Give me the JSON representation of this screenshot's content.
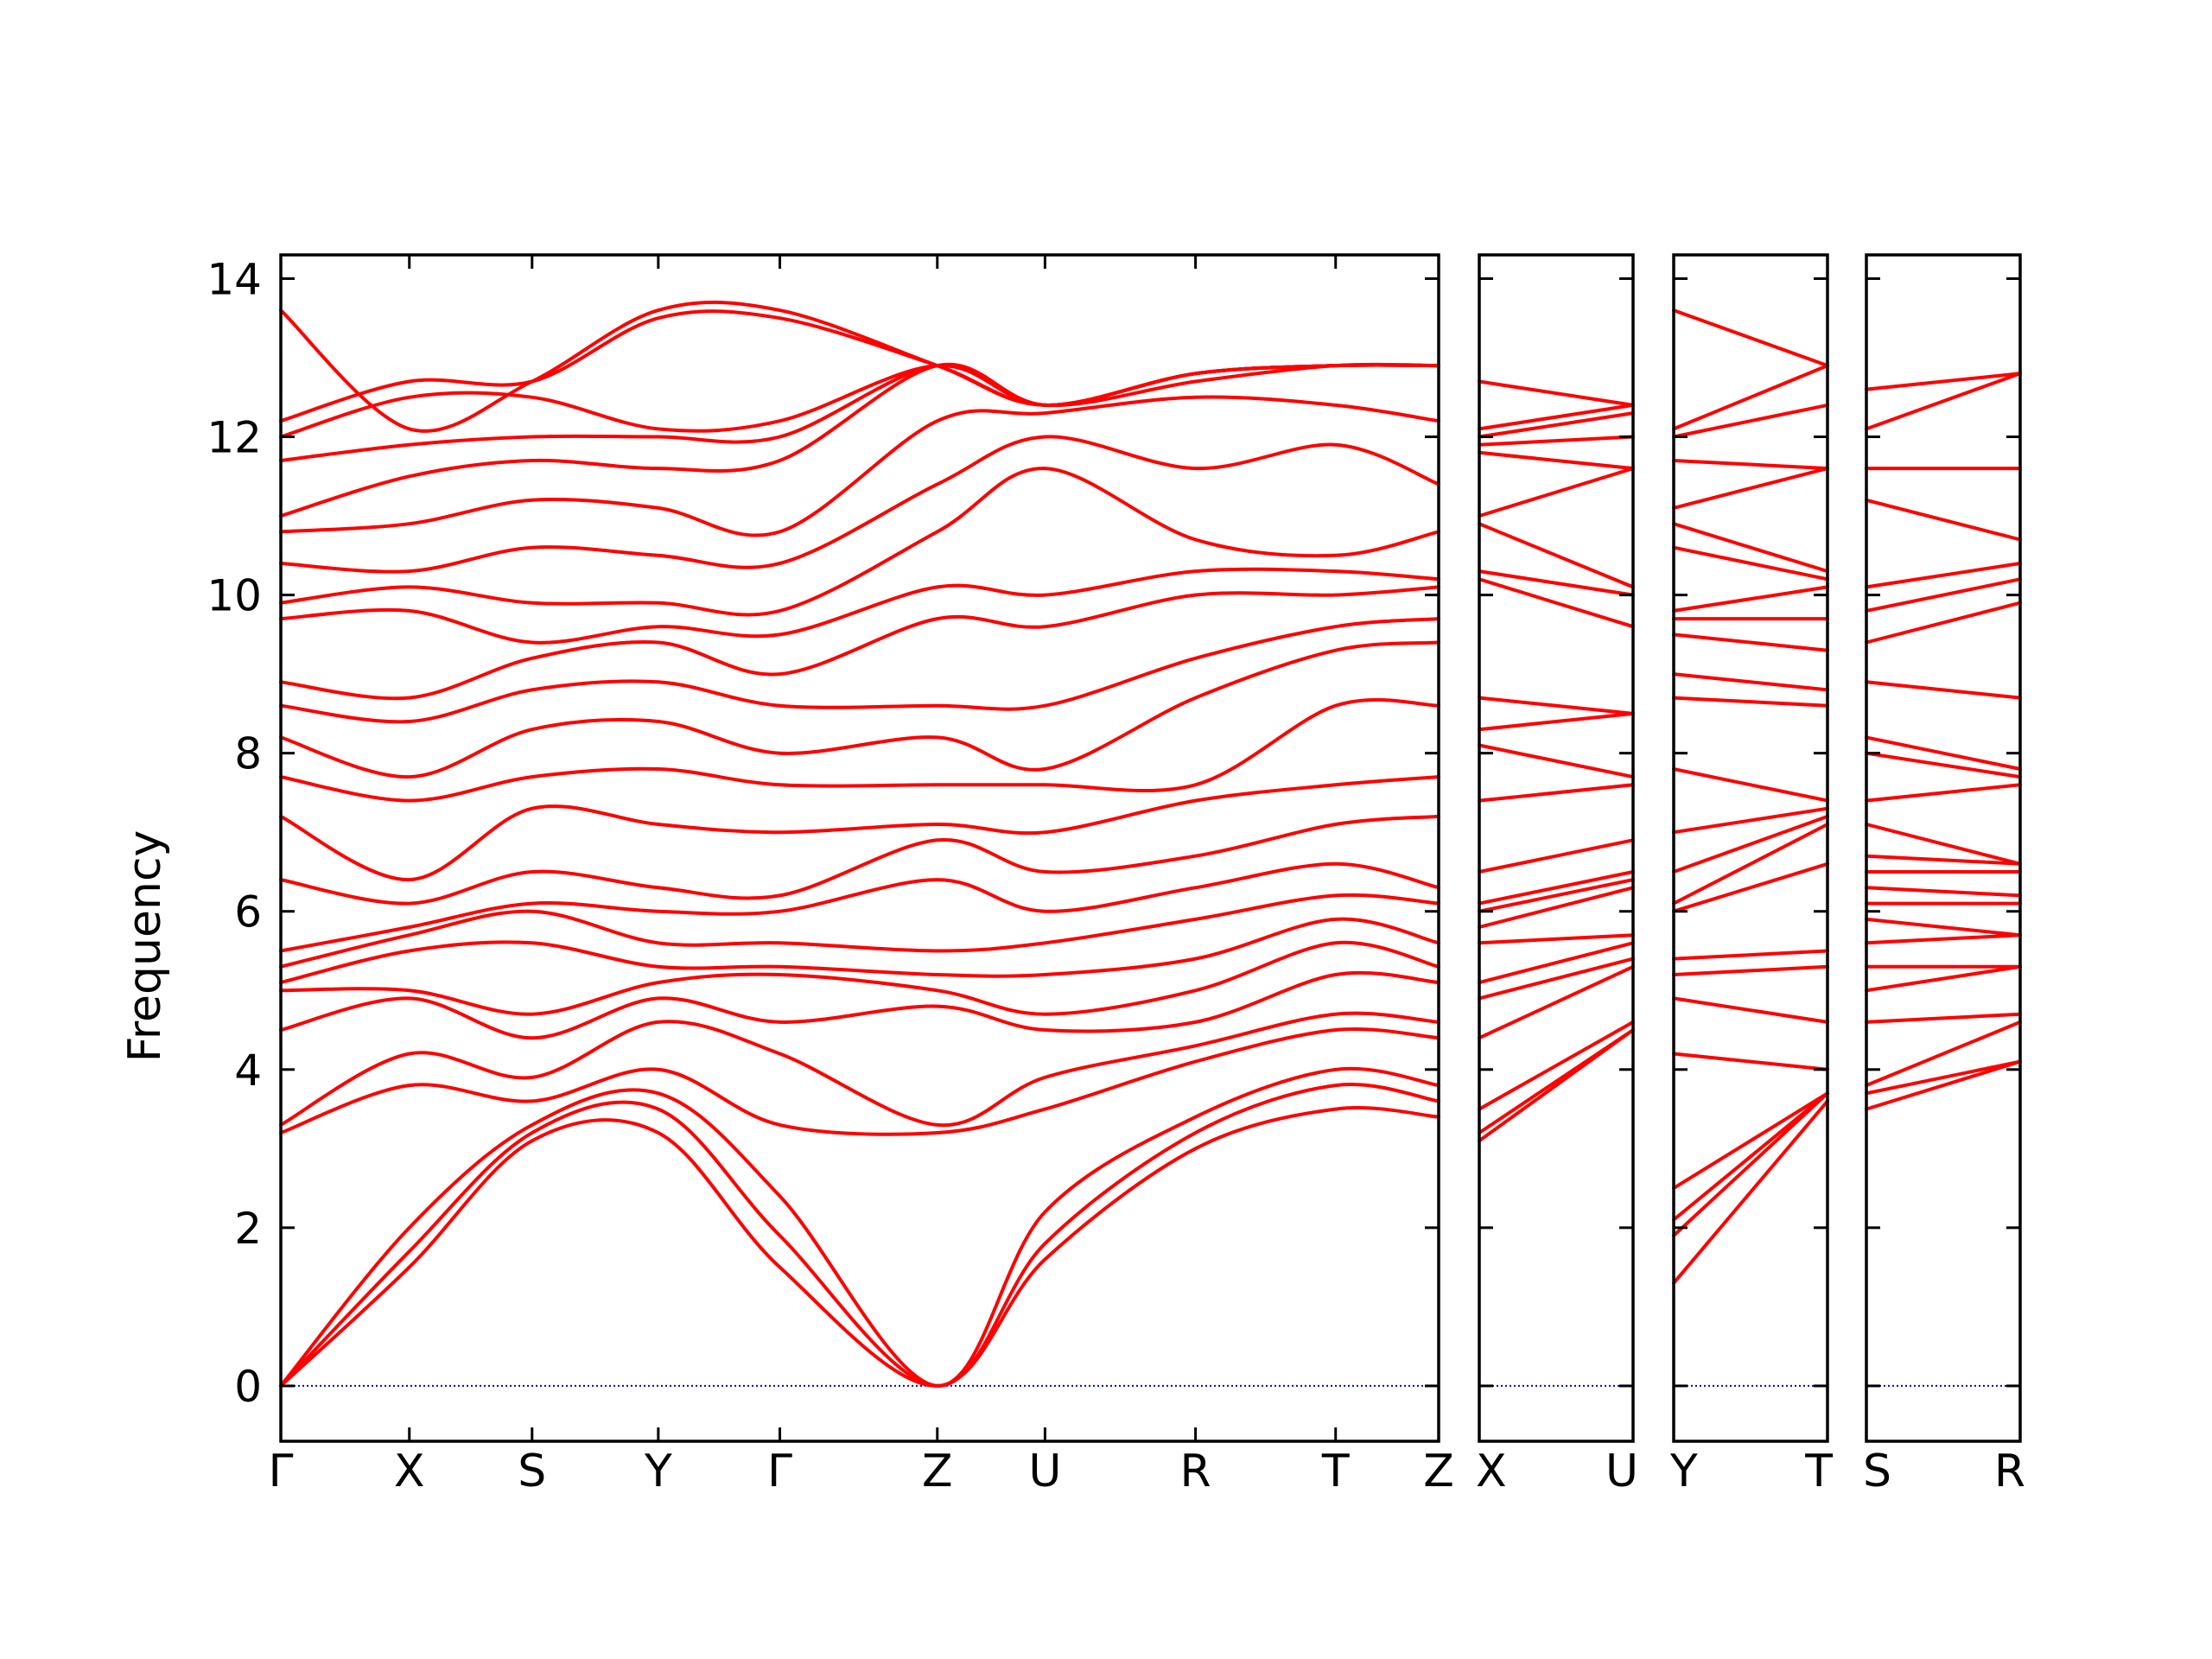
{
  "chart_data": {
    "type": "line",
    "ylabel": "Frequency",
    "xlabel": "",
    "ylim": [
      -0.7,
      14.3
    ],
    "y_ticks": [
      0,
      2,
      4,
      6,
      8,
      10,
      12,
      14
    ],
    "grid": false,
    "colors": {
      "bands": "#ff0000",
      "zero_line": "#0000cc",
      "axes": "#000000"
    },
    "panels": [
      {
        "path_labels": [
          "Γ",
          "X",
          "S",
          "Y",
          "Γ",
          "Z",
          "U",
          "R",
          "T",
          "Z"
        ],
        "x": [
          0,
          0.111,
          0.217,
          0.326,
          0.431,
          0.567,
          0.66,
          0.79,
          0.911,
          1.0
        ],
        "bands": [
          [
            0,
            1.5,
            3.1,
            3.2,
            1.5,
            0,
            1.6,
            3.0,
            3.5,
            3.4
          ],
          [
            0,
            1.7,
            3.2,
            3.5,
            1.9,
            0,
            1.8,
            3.2,
            3.8,
            3.6
          ],
          [
            0,
            2.0,
            3.3,
            3.7,
            2.4,
            0,
            2.2,
            3.4,
            4.0,
            3.8
          ],
          [
            3.2,
            3.8,
            3.6,
            4.0,
            3.3,
            3.2,
            3.5,
            4.1,
            4.5,
            4.4
          ],
          [
            3.3,
            4.2,
            3.9,
            4.6,
            4.2,
            3.3,
            3.9,
            4.3,
            4.7,
            4.6
          ],
          [
            4.5,
            4.9,
            4.4,
            4.9,
            4.6,
            4.8,
            4.5,
            4.6,
            5.2,
            5.1
          ],
          [
            5.0,
            5.0,
            4.7,
            5.1,
            5.2,
            5.0,
            4.7,
            5.0,
            5.6,
            5.3
          ],
          [
            5.1,
            5.5,
            5.6,
            5.3,
            5.3,
            5.2,
            5.2,
            5.4,
            5.9,
            5.6
          ],
          [
            5.3,
            5.7,
            6.0,
            5.6,
            5.6,
            5.5,
            5.6,
            5.9,
            6.2,
            6.1
          ],
          [
            5.5,
            5.8,
            6.1,
            6.0,
            6.0,
            6.4,
            6.0,
            6.3,
            6.6,
            6.3
          ],
          [
            6.4,
            6.1,
            6.5,
            6.3,
            6.2,
            6.9,
            6.5,
            6.7,
            7.1,
            7.2
          ],
          [
            7.2,
            6.4,
            7.3,
            7.1,
            7.0,
            7.1,
            7.0,
            7.4,
            7.6,
            7.7
          ],
          [
            7.7,
            7.4,
            7.7,
            7.8,
            7.6,
            7.6,
            7.6,
            7.6,
            8.6,
            8.6
          ],
          [
            8.2,
            7.7,
            8.3,
            8.4,
            8.0,
            8.2,
            7.8,
            8.7,
            9.3,
            9.4
          ],
          [
            8.6,
            8.4,
            8.8,
            8.9,
            8.6,
            8.6,
            8.6,
            9.2,
            9.6,
            9.7
          ],
          [
            8.9,
            8.7,
            9.2,
            9.4,
            9.0,
            9.7,
            9.6,
            10.0,
            10.0,
            10.1
          ],
          [
            9.7,
            9.8,
            9.4,
            9.6,
            9.5,
            10.1,
            10.0,
            10.3,
            10.3,
            10.2
          ],
          [
            9.9,
            10.1,
            9.9,
            9.9,
            9.8,
            10.8,
            11.6,
            10.7,
            10.5,
            10.8
          ],
          [
            10.4,
            10.3,
            10.6,
            10.5,
            10.4,
            11.4,
            12.0,
            11.6,
            11.9,
            11.4
          ],
          [
            10.8,
            10.9,
            11.2,
            11.1,
            10.8,
            12.2,
            12.3,
            12.5,
            12.4,
            12.2
          ],
          [
            11.0,
            11.5,
            11.7,
            11.6,
            11.7,
            12.9,
            12.4,
            12.7,
            12.9,
            12.9
          ],
          [
            11.7,
            11.9,
            12.0,
            12.0,
            12.0,
            12.9,
            12.4,
            12.8,
            12.9,
            12.9
          ],
          [
            12.0,
            12.5,
            12.5,
            12.1,
            12.2,
            12.9,
            12.4,
            12.8,
            12.9,
            12.9
          ],
          [
            12.2,
            12.7,
            12.7,
            13.5,
            13.5,
            12.9,
            12.4,
            12.8,
            12.9,
            12.9
          ],
          [
            13.6,
            12.1,
            12.7,
            13.6,
            13.6,
            12.9,
            12.4,
            12.8,
            12.9,
            12.9
          ]
        ]
      },
      {
        "path_labels": [
          "X",
          "U"
        ],
        "x": [
          0,
          1
        ],
        "bands": [
          [
            3.1,
            4.5
          ],
          [
            3.2,
            4.5
          ],
          [
            3.5,
            4.6
          ],
          [
            4.4,
            5.3
          ],
          [
            4.9,
            5.4
          ],
          [
            5.1,
            5.6
          ],
          [
            5.6,
            5.7
          ],
          [
            5.8,
            6.3
          ],
          [
            6.0,
            6.4
          ],
          [
            6.1,
            6.5
          ],
          [
            6.5,
            6.9
          ],
          [
            7.4,
            7.6
          ],
          [
            8.1,
            7.7
          ],
          [
            8.3,
            8.5
          ],
          [
            8.7,
            8.5
          ],
          [
            10.2,
            9.6
          ],
          [
            10.3,
            10.0
          ],
          [
            10.9,
            10.1
          ],
          [
            11.0,
            11.6
          ],
          [
            11.8,
            11.6
          ],
          [
            11.9,
            12.0
          ],
          [
            12.0,
            12.3
          ],
          [
            12.1,
            12.4
          ],
          [
            12.7,
            12.4
          ]
        ]
      },
      {
        "path_labels": [
          "Y",
          "T"
        ],
        "x": [
          0,
          1
        ],
        "bands": [
          [
            1.3,
            3.6
          ],
          [
            1.9,
            3.7
          ],
          [
            2.1,
            3.7
          ],
          [
            2.5,
            3.7
          ],
          [
            4.2,
            4.0
          ],
          [
            4.9,
            4.6
          ],
          [
            5.2,
            5.3
          ],
          [
            5.4,
            5.5
          ],
          [
            6.0,
            6.6
          ],
          [
            6.1,
            7.1
          ],
          [
            6.5,
            7.2
          ],
          [
            7.0,
            7.3
          ],
          [
            7.8,
            7.4
          ],
          [
            8.7,
            8.6
          ],
          [
            9.0,
            8.8
          ],
          [
            9.5,
            9.3
          ],
          [
            9.7,
            9.7
          ],
          [
            9.8,
            10.1
          ],
          [
            10.6,
            10.2
          ],
          [
            10.9,
            10.3
          ],
          [
            11.1,
            11.6
          ],
          [
            11.7,
            11.6
          ],
          [
            12.0,
            12.4
          ],
          [
            12.1,
            12.9
          ],
          [
            13.6,
            12.9
          ]
        ]
      },
      {
        "path_labels": [
          "S",
          "R"
        ],
        "x": [
          0,
          1
        ],
        "bands": [
          [
            3.5,
            4.1
          ],
          [
            3.7,
            4.1
          ],
          [
            3.8,
            4.6
          ],
          [
            4.6,
            4.7
          ],
          [
            5.0,
            5.3
          ],
          [
            5.3,
            5.3
          ],
          [
            5.6,
            5.7
          ],
          [
            5.9,
            5.7
          ],
          [
            6.1,
            6.1
          ],
          [
            6.3,
            6.2
          ],
          [
            6.5,
            6.5
          ],
          [
            6.7,
            6.6
          ],
          [
            7.1,
            6.6
          ],
          [
            7.4,
            7.6
          ],
          [
            8.0,
            7.7
          ],
          [
            8.2,
            7.8
          ],
          [
            8.9,
            8.7
          ],
          [
            9.4,
            9.9
          ],
          [
            9.8,
            10.2
          ],
          [
            10.1,
            10.4
          ],
          [
            11.2,
            10.7
          ],
          [
            11.6,
            11.6
          ],
          [
            12.1,
            12.8
          ],
          [
            12.6,
            12.8
          ]
        ]
      }
    ]
  }
}
